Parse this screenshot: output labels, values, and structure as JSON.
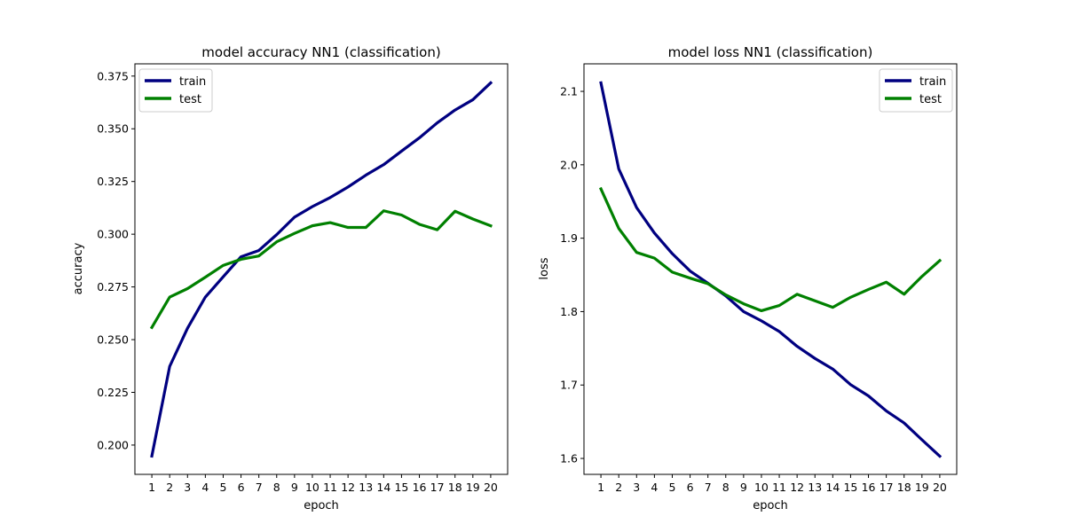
{
  "chart_data": [
    {
      "type": "line",
      "title": "model accuracy NN1 (classification)",
      "xlabel": "epoch",
      "ylabel": "accuracy",
      "x": [
        1,
        2,
        3,
        4,
        5,
        6,
        7,
        8,
        9,
        10,
        11,
        12,
        13,
        14,
        15,
        16,
        17,
        18,
        19,
        20
      ],
      "xticks": [
        "1",
        "2",
        "3",
        "4",
        "5",
        "6",
        "7",
        "8",
        "9",
        "10",
        "11",
        "12",
        "13",
        "14",
        "15",
        "16",
        "17",
        "18",
        "19",
        "20"
      ],
      "xlim": [
        0.05,
        20.95
      ],
      "ylim": [
        0.1861,
        0.3808
      ],
      "yticks": [
        "0.200",
        "0.225",
        "0.250",
        "0.275",
        "0.300",
        "0.325",
        "0.350",
        "0.375"
      ],
      "legend": "top-left",
      "grid": false,
      "series": [
        {
          "name": "train",
          "color": "#000080",
          "values": [
            0.1948,
            0.2373,
            0.2554,
            0.2702,
            0.2798,
            0.2893,
            0.2923,
            0.2998,
            0.3081,
            0.3131,
            0.3174,
            0.3224,
            0.328,
            0.333,
            0.3394,
            0.3457,
            0.3528,
            0.3589,
            0.3638,
            0.3718
          ]
        },
        {
          "name": "test",
          "color": "#008000",
          "values": [
            0.2558,
            0.2702,
            0.2742,
            0.2796,
            0.2852,
            0.2881,
            0.2897,
            0.2964,
            0.3004,
            0.304,
            0.3055,
            0.3032,
            0.3032,
            0.3111,
            0.3091,
            0.3047,
            0.3021,
            0.3109,
            0.3072,
            0.304
          ]
        }
      ]
    },
    {
      "type": "line",
      "title": "model loss NN1 (classification)",
      "xlabel": "epoch",
      "ylabel": "loss",
      "x": [
        1,
        2,
        3,
        4,
        5,
        6,
        7,
        8,
        9,
        10,
        11,
        12,
        13,
        14,
        15,
        16,
        17,
        18,
        19,
        20
      ],
      "xticks": [
        "1",
        "2",
        "3",
        "4",
        "5",
        "6",
        "7",
        "8",
        "9",
        "10",
        "11",
        "12",
        "13",
        "14",
        "15",
        "16",
        "17",
        "18",
        "19",
        "20"
      ],
      "xlim": [
        0.05,
        20.95
      ],
      "ylim": [
        1.5783,
        2.1375
      ],
      "yticks": [
        "1.6",
        "1.7",
        "1.8",
        "1.9",
        "2.0",
        "2.1"
      ],
      "legend": "top-right",
      "grid": false,
      "series": [
        {
          "name": "train",
          "color": "#000080",
          "values": [
            2.1117,
            1.9943,
            1.9417,
            1.907,
            1.879,
            1.8553,
            1.8386,
            1.8214,
            1.8,
            1.7874,
            1.7729,
            1.7527,
            1.7362,
            1.7218,
            1.7005,
            1.6852,
            1.6647,
            1.6483,
            1.6254,
            1.603
          ]
        },
        {
          "name": "test",
          "color": "#008000",
          "values": [
            1.9672,
            1.9133,
            1.8806,
            1.8728,
            1.8538,
            1.8456,
            1.838,
            1.8228,
            1.8107,
            1.8012,
            1.8083,
            1.8236,
            1.8147,
            1.8058,
            1.8195,
            1.8302,
            1.8401,
            1.8237,
            1.8479,
            1.8695
          ]
        }
      ]
    }
  ]
}
